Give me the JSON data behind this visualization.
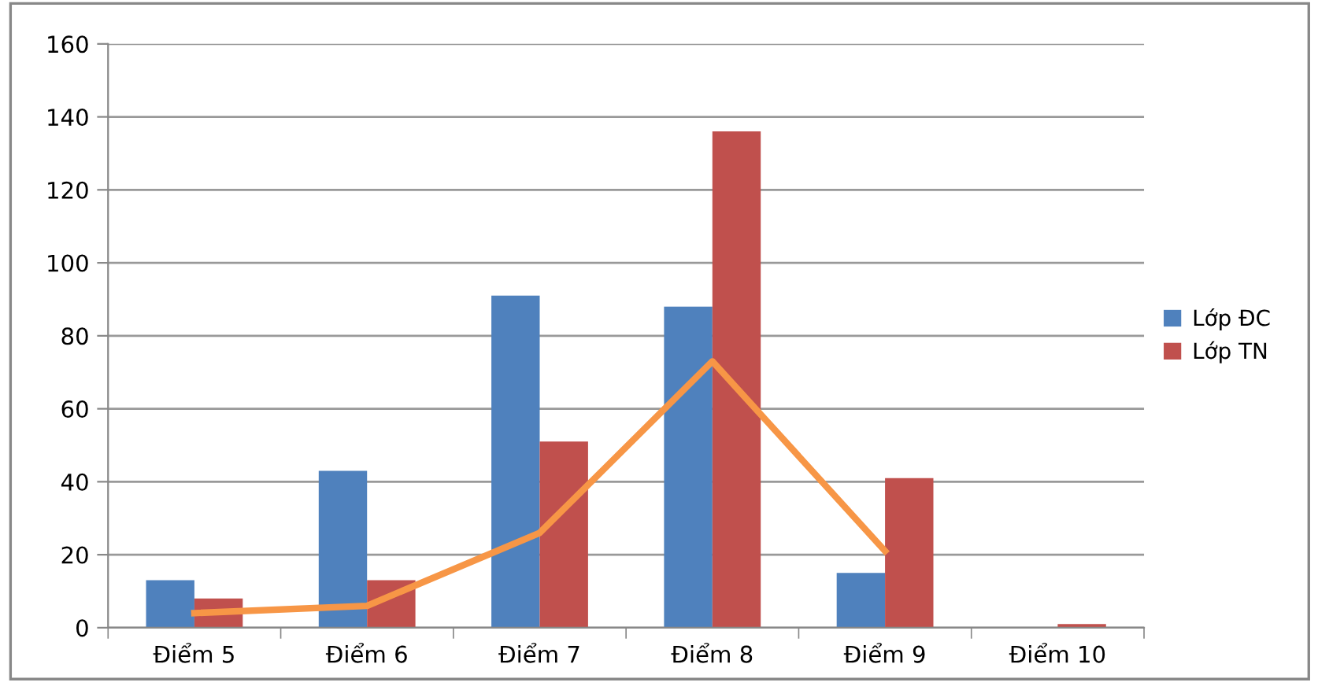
{
  "chart_data": {
    "type": "bar",
    "categories": [
      "Điểm 5",
      "Điểm 6",
      "Điểm 7",
      "Điểm 8",
      "Điểm 9",
      "Điểm 10"
    ],
    "series": [
      {
        "name": "Lớp ĐC",
        "color": "#4f81bd",
        "values": [
          13,
          43,
          91,
          88,
          15,
          0
        ]
      },
      {
        "name": "Lớp TN",
        "color": "#c0504d",
        "values": [
          8,
          13,
          51,
          136,
          41,
          1
        ]
      },
      {
        "type": "line",
        "color": "#f79646",
        "values": [
          4,
          6,
          26,
          73,
          21,
          null
        ]
      }
    ],
    "ylim": [
      0,
      160
    ],
    "yticks": [
      0,
      20,
      40,
      60,
      80,
      100,
      120,
      140,
      160
    ],
    "grid": "y",
    "legend": "right",
    "marker": "none",
    "line_style": "solid"
  }
}
